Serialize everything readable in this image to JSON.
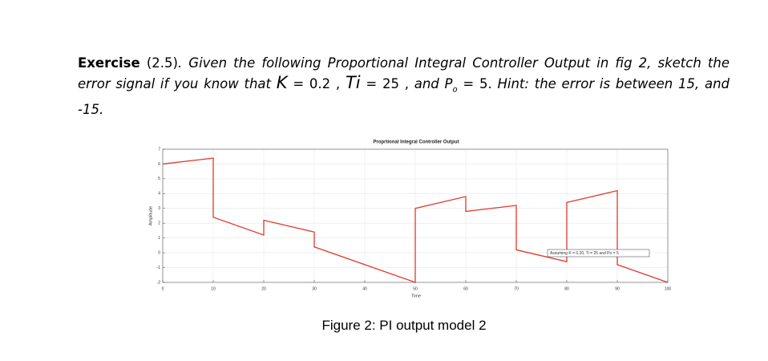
{
  "exercise": {
    "label": "Exercise",
    "number": "(2.5)",
    "intro": ". Given the following Proportional Integral Controller Output in fig 2, sketch the error signal if you know that",
    "k_symbol": "K",
    "k_value": "= 0.2 ,",
    "ti_symbol": "Ti",
    "ti_value": "= 25 ,",
    "p_symbol": "and P",
    "p_subscript": "o",
    "p_value": "= 5.",
    "hint": "Hint: the error is between 15, and -15."
  },
  "caption": "Figure 2: PI output model 2",
  "chart_data": {
    "type": "line",
    "title": "Proprtional Integral Controller Output",
    "x_label": "Time",
    "y_label": "Amplitude",
    "annotation": "Assuming K = 0.20, Ti = 25 and Po = 5",
    "x": [
      0,
      10,
      10,
      20,
      20,
      30,
      30,
      50,
      50,
      60,
      60,
      70,
      70,
      80,
      80,
      90,
      90,
      100
    ],
    "series": [
      {
        "color": "#e0392b",
        "values": [
          6.0,
          6.4,
          2.4,
          1.2,
          2.2,
          1.4,
          0.4,
          -2.0,
          3.0,
          3.8,
          2.8,
          3.2,
          0.2,
          -0.6,
          3.4,
          4.2,
          -0.8,
          -2.0
        ]
      }
    ],
    "xlim": [
      0,
      100
    ],
    "xticks": [
      0,
      10,
      20,
      30,
      40,
      50,
      60,
      70,
      80,
      90,
      100
    ],
    "ylim": [
      -2,
      7
    ],
    "yticks": [
      -2,
      -1,
      0,
      1,
      2,
      3,
      4,
      5,
      6,
      7
    ],
    "grid": true
  }
}
